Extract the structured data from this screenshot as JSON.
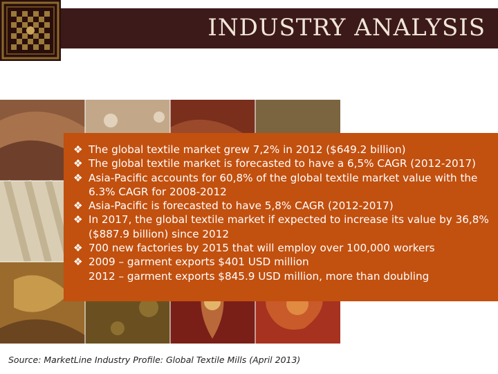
{
  "header": {
    "title": "INDUSTRY ANALYSIS"
  },
  "bullet_glyph": "❖",
  "bullets": [
    {
      "lines": [
        "The global textile market grew 7,2% in 2012 ($649.2 billion)"
      ]
    },
    {
      "lines": [
        "The global textile market is forecasted to have a 6,5% CAGR (2012-2017)"
      ]
    },
    {
      "lines": [
        "Asia-Pacific accounts for 60,8% of the global textile market value with the",
        "6.3% CAGR for 2008-2012"
      ]
    },
    {
      "lines": [
        "Asia-Pacific is forecasted to have 5,8% CAGR (2012-2017)"
      ]
    },
    {
      "lines": [
        "In 2017, the global textile market if expected to increase its value by 36,8%",
        "($887.9 billion) since 2012"
      ]
    },
    {
      "lines": [
        "700 new factories by 2015 that will employ over 100,000 workers"
      ]
    },
    {
      "lines": [
        "2009 – garment exports  $401 USD million",
        "2012  –  garment exports $845.9 USD million, more than doubling"
      ]
    }
  ],
  "source": "Source: MarketLine Industry Profile: Global Textile Mills (April 2013)",
  "colors": {
    "title_bar": "#3d1a1a",
    "content_box": "#c2500f",
    "title_text": "#f1e6d8"
  }
}
